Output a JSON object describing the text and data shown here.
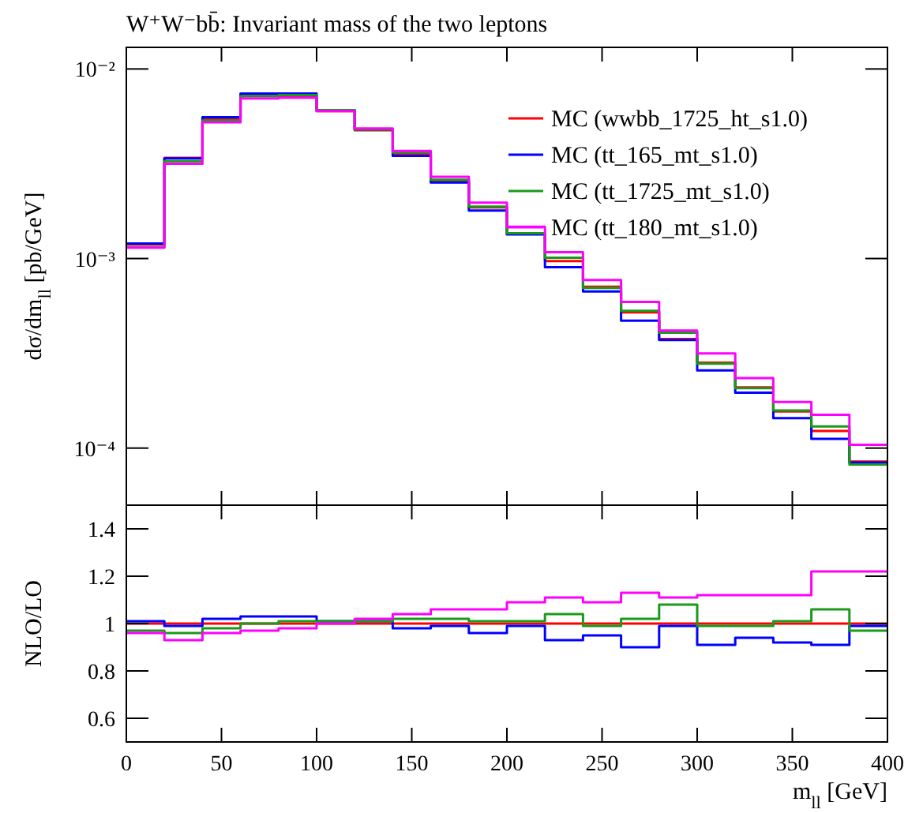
{
  "chart_data": [
    {
      "type": "histogram",
      "title": "W⁺W⁻bb̄: Invariant mass of the two leptons",
      "ylabel": "dσ/dm$_{ll}$ [pb/GeV]",
      "bins": [
        0,
        20,
        40,
        60,
        80,
        100,
        120,
        140,
        160,
        180,
        200,
        220,
        240,
        260,
        280,
        300,
        320,
        340,
        360,
        380,
        400
      ],
      "series": [
        {
          "name": "MC (wwbb_1725_ht_s1.0)",
          "color": "#ff0000",
          "values": [
            0.00119,
            0.0034,
            0.00545,
            0.0072,
            0.0072,
            0.006,
            0.00475,
            0.00355,
            0.00255,
            0.00186,
            0.00135,
            0.00097,
            0.00071,
            0.00052,
            0.000376,
            0.000282,
            0.000209,
            0.000156,
            0.000123,
            8.5e-05
          ]
        },
        {
          "name": "MC (tt_165_mt_s1.0)",
          "color": "#0000ff",
          "values": [
            0.0012,
            0.00337,
            0.00556,
            0.00742,
            0.00742,
            0.00606,
            0.0048,
            0.00348,
            0.00252,
            0.00179,
            0.00134,
            0.0009,
            0.00067,
            0.00047,
            0.000372,
            0.000257,
            0.000196,
            0.000144,
            0.000112,
            8.4e-05
          ]
        },
        {
          "name": "MC (tt_1725_mt_s1.0)",
          "color": "#1a9a1a",
          "values": [
            0.00115,
            0.00326,
            0.00534,
            0.0072,
            0.00727,
            0.00606,
            0.0048,
            0.00362,
            0.0026,
            0.00188,
            0.00136,
            0.00101,
            0.0007,
            0.00053,
            0.000406,
            0.000279,
            0.000207,
            0.000158,
            0.00013,
            8.2e-05
          ]
        },
        {
          "name": "MC (tt_180_mt_s1.0)",
          "color": "#ff00ff",
          "values": [
            0.00114,
            0.00316,
            0.00523,
            0.00698,
            0.00706,
            0.006,
            0.00485,
            0.00369,
            0.0027,
            0.00197,
            0.00147,
            0.00108,
            0.00077,
            0.00059,
            0.000417,
            0.000316,
            0.000234,
            0.000175,
            0.00015,
            0.000104
          ]
        }
      ],
      "xlim": [
        0,
        400
      ],
      "xticks": [
        0,
        50,
        100,
        150,
        200,
        250,
        300,
        350,
        400
      ],
      "ylim": [
        5e-05,
        0.013
      ],
      "yticks": [
        {
          "value": 0.01,
          "label": "10⁻²"
        },
        {
          "value": 0.001,
          "label": "10⁻³"
        },
        {
          "value": 0.0001,
          "label": "10⁻⁴"
        }
      ],
      "log": "y",
      "legend": "top right",
      "tick_labels": "y"
    },
    {
      "type": "histogram",
      "xlabel": "m$_{ll}$ [GeV]",
      "ylabel": "NLO/LO",
      "bins": [
        0,
        20,
        40,
        60,
        80,
        100,
        120,
        140,
        160,
        180,
        200,
        220,
        240,
        260,
        280,
        300,
        320,
        340,
        360,
        380,
        400
      ],
      "series": [
        {
          "color": "#ff0000",
          "values": [
            1.0,
            1.0,
            1.0,
            1.0,
            1.0,
            1.0,
            1.0,
            1.0,
            1.0,
            1.0,
            1.0,
            1.0,
            1.0,
            1.0,
            1.0,
            1.0,
            1.0,
            1.0,
            1.0,
            1.0
          ]
        },
        {
          "color": "#0000ff",
          "values": [
            1.01,
            0.99,
            1.02,
            1.03,
            1.03,
            1.01,
            1.01,
            0.98,
            0.99,
            0.96,
            0.99,
            0.93,
            0.95,
            0.9,
            0.99,
            0.91,
            0.94,
            0.92,
            0.91,
            0.99
          ]
        },
        {
          "color": "#1a9a1a",
          "values": [
            0.97,
            0.96,
            0.98,
            1.0,
            1.01,
            1.01,
            1.01,
            1.02,
            1.02,
            1.01,
            1.01,
            1.04,
            0.99,
            1.02,
            1.08,
            0.99,
            0.99,
            1.01,
            1.06,
            0.97
          ]
        },
        {
          "color": "#ff00ff",
          "values": [
            0.96,
            0.93,
            0.96,
            0.97,
            0.98,
            1.0,
            1.02,
            1.04,
            1.06,
            1.06,
            1.09,
            1.11,
            1.09,
            1.13,
            1.11,
            1.12,
            1.12,
            1.12,
            1.22,
            1.22
          ]
        }
      ],
      "xlim": [
        0,
        400
      ],
      "xticks": [
        0,
        50,
        100,
        150,
        200,
        250,
        300,
        350,
        400
      ],
      "ylim": [
        0.5,
        1.5
      ],
      "yticks": [
        0.6,
        0.8,
        1,
        1.2,
        1.4
      ]
    }
  ]
}
